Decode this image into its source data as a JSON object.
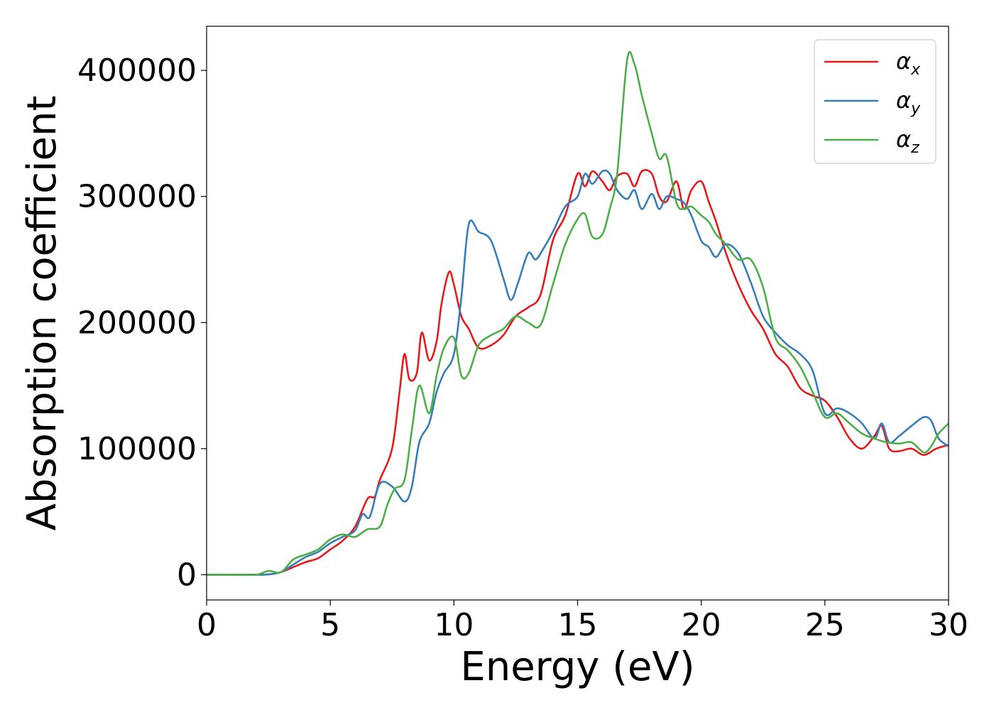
{
  "chart_data": {
    "type": "line",
    "title": "",
    "xlabel": "Energy (eV)",
    "ylabel": "Absorption coefficient",
    "xlim": [
      0,
      30
    ],
    "ylim": [
      -20000,
      435000
    ],
    "xticks": [
      0,
      5,
      10,
      15,
      20,
      25,
      30
    ],
    "yticks": [
      0,
      100000,
      200000,
      300000,
      400000
    ],
    "grid": false,
    "legend_position": "top-right",
    "series": [
      {
        "name": "αx",
        "symbol": "α",
        "subscript": "x",
        "color": "#e41a1c",
        "x": [
          0,
          1,
          2,
          2.5,
          3,
          3.5,
          4,
          4.5,
          5,
          5.5,
          6,
          6.5,
          6.8,
          7,
          7.5,
          7.8,
          8,
          8.2,
          8.5,
          8.7,
          9,
          9.3,
          9.5,
          9.8,
          10,
          10.3,
          10.6,
          11,
          11.5,
          12,
          12.5,
          13,
          13.5,
          14,
          14.5,
          15,
          15.3,
          15.6,
          16,
          16.3,
          16.6,
          17,
          17.3,
          17.6,
          18,
          18.3,
          18.6,
          19,
          19.3,
          19.6,
          20,
          20.3,
          20.6,
          21,
          21.5,
          22,
          22.5,
          23,
          23.5,
          24,
          24.5,
          25,
          25.5,
          26,
          26.5,
          27,
          27.3,
          27.6,
          28,
          28.5,
          29,
          29.5,
          30
        ],
        "y": [
          0,
          0,
          0,
          300,
          2000,
          6000,
          10000,
          13000,
          20000,
          27000,
          38000,
          60000,
          62000,
          75000,
          100000,
          145000,
          175000,
          155000,
          160000,
          192000,
          170000,
          185000,
          215000,
          240000,
          230000,
          205000,
          195000,
          180000,
          182000,
          190000,
          205000,
          212000,
          222000,
          265000,
          285000,
          318000,
          308000,
          320000,
          312000,
          305000,
          316000,
          318000,
          308000,
          320000,
          318000,
          300000,
          296000,
          312000,
          290000,
          305000,
          312000,
          296000,
          280000,
          255000,
          230000,
          210000,
          195000,
          175000,
          165000,
          148000,
          142000,
          138000,
          125000,
          108000,
          100000,
          110000,
          118000,
          100000,
          98000,
          100000,
          95000,
          100000,
          103000
        ]
      },
      {
        "name": "αy",
        "symbol": "α",
        "subscript": "y",
        "color": "#377eb8",
        "x": [
          0,
          1,
          2,
          2.5,
          3,
          3.5,
          4,
          4.5,
          5,
          5.5,
          6,
          6.3,
          6.6,
          7,
          7.5,
          8,
          8.3,
          8.6,
          9,
          9.3,
          9.6,
          10,
          10.3,
          10.6,
          11,
          11.5,
          12,
          12.3,
          12.6,
          13,
          13.3,
          13.6,
          14,
          14.5,
          15,
          15.3,
          15.6,
          16,
          16.3,
          16.6,
          17,
          17.3,
          17.6,
          18,
          18.3,
          18.6,
          19,
          19.3,
          19.6,
          20,
          20.3,
          20.6,
          21,
          21.5,
          22,
          22.5,
          23,
          23.5,
          24,
          24.5,
          25,
          25.5,
          26,
          26.5,
          27,
          27.3,
          27.6,
          28,
          28.5,
          29,
          29.3,
          29.6,
          30
        ],
        "y": [
          0,
          0,
          0,
          300,
          2000,
          8000,
          14000,
          18000,
          25000,
          30000,
          35000,
          48000,
          46000,
          72000,
          70000,
          58000,
          70000,
          105000,
          120000,
          145000,
          160000,
          175000,
          220000,
          278000,
          272000,
          265000,
          235000,
          218000,
          232000,
          255000,
          250000,
          258000,
          272000,
          292000,
          300000,
          318000,
          310000,
          320000,
          318000,
          305000,
          298000,
          305000,
          290000,
          302000,
          290000,
          300000,
          298000,
          295000,
          285000,
          265000,
          260000,
          252000,
          262000,
          255000,
          232000,
          205000,
          192000,
          182000,
          175000,
          162000,
          128000,
          132000,
          128000,
          120000,
          108000,
          120000,
          105000,
          110000,
          118000,
          125000,
          122000,
          108000,
          102000
        ]
      },
      {
        "name": "αz",
        "symbol": "α",
        "subscript": "z",
        "color": "#4daf4a",
        "x": [
          0,
          1,
          2,
          2.5,
          3,
          3.5,
          4,
          4.5,
          5,
          5.5,
          6,
          6.5,
          7,
          7.3,
          7.6,
          8,
          8.3,
          8.6,
          9,
          9.3,
          9.6,
          10,
          10.3,
          10.6,
          11,
          11.5,
          12,
          12.5,
          13,
          13.5,
          14,
          14.5,
          15,
          15.3,
          15.6,
          16,
          16.3,
          16.6,
          17,
          17.3,
          17.6,
          18,
          18.3,
          18.6,
          19,
          19.3,
          19.6,
          20,
          20.3,
          20.6,
          21,
          21.5,
          22,
          22.5,
          23,
          23.5,
          24,
          24.5,
          25,
          25.5,
          26,
          26.5,
          27,
          27.5,
          28,
          28.5,
          29,
          29.3,
          29.6,
          30
        ],
        "y": [
          0,
          0,
          0,
          3000,
          2000,
          12000,
          16000,
          20000,
          28000,
          32000,
          30000,
          36000,
          38000,
          55000,
          68000,
          75000,
          115000,
          150000,
          128000,
          158000,
          180000,
          188000,
          158000,
          160000,
          182000,
          190000,
          195000,
          205000,
          200000,
          198000,
          230000,
          262000,
          282000,
          286000,
          268000,
          270000,
          290000,
          318000,
          408000,
          405000,
          380000,
          350000,
          330000,
          332000,
          295000,
          290000,
          292000,
          285000,
          280000,
          270000,
          262000,
          250000,
          250000,
          228000,
          188000,
          178000,
          165000,
          145000,
          125000,
          128000,
          120000,
          112000,
          108000,
          105000,
          104000,
          105000,
          97000,
          102000,
          112000,
          120000
        ]
      }
    ]
  }
}
